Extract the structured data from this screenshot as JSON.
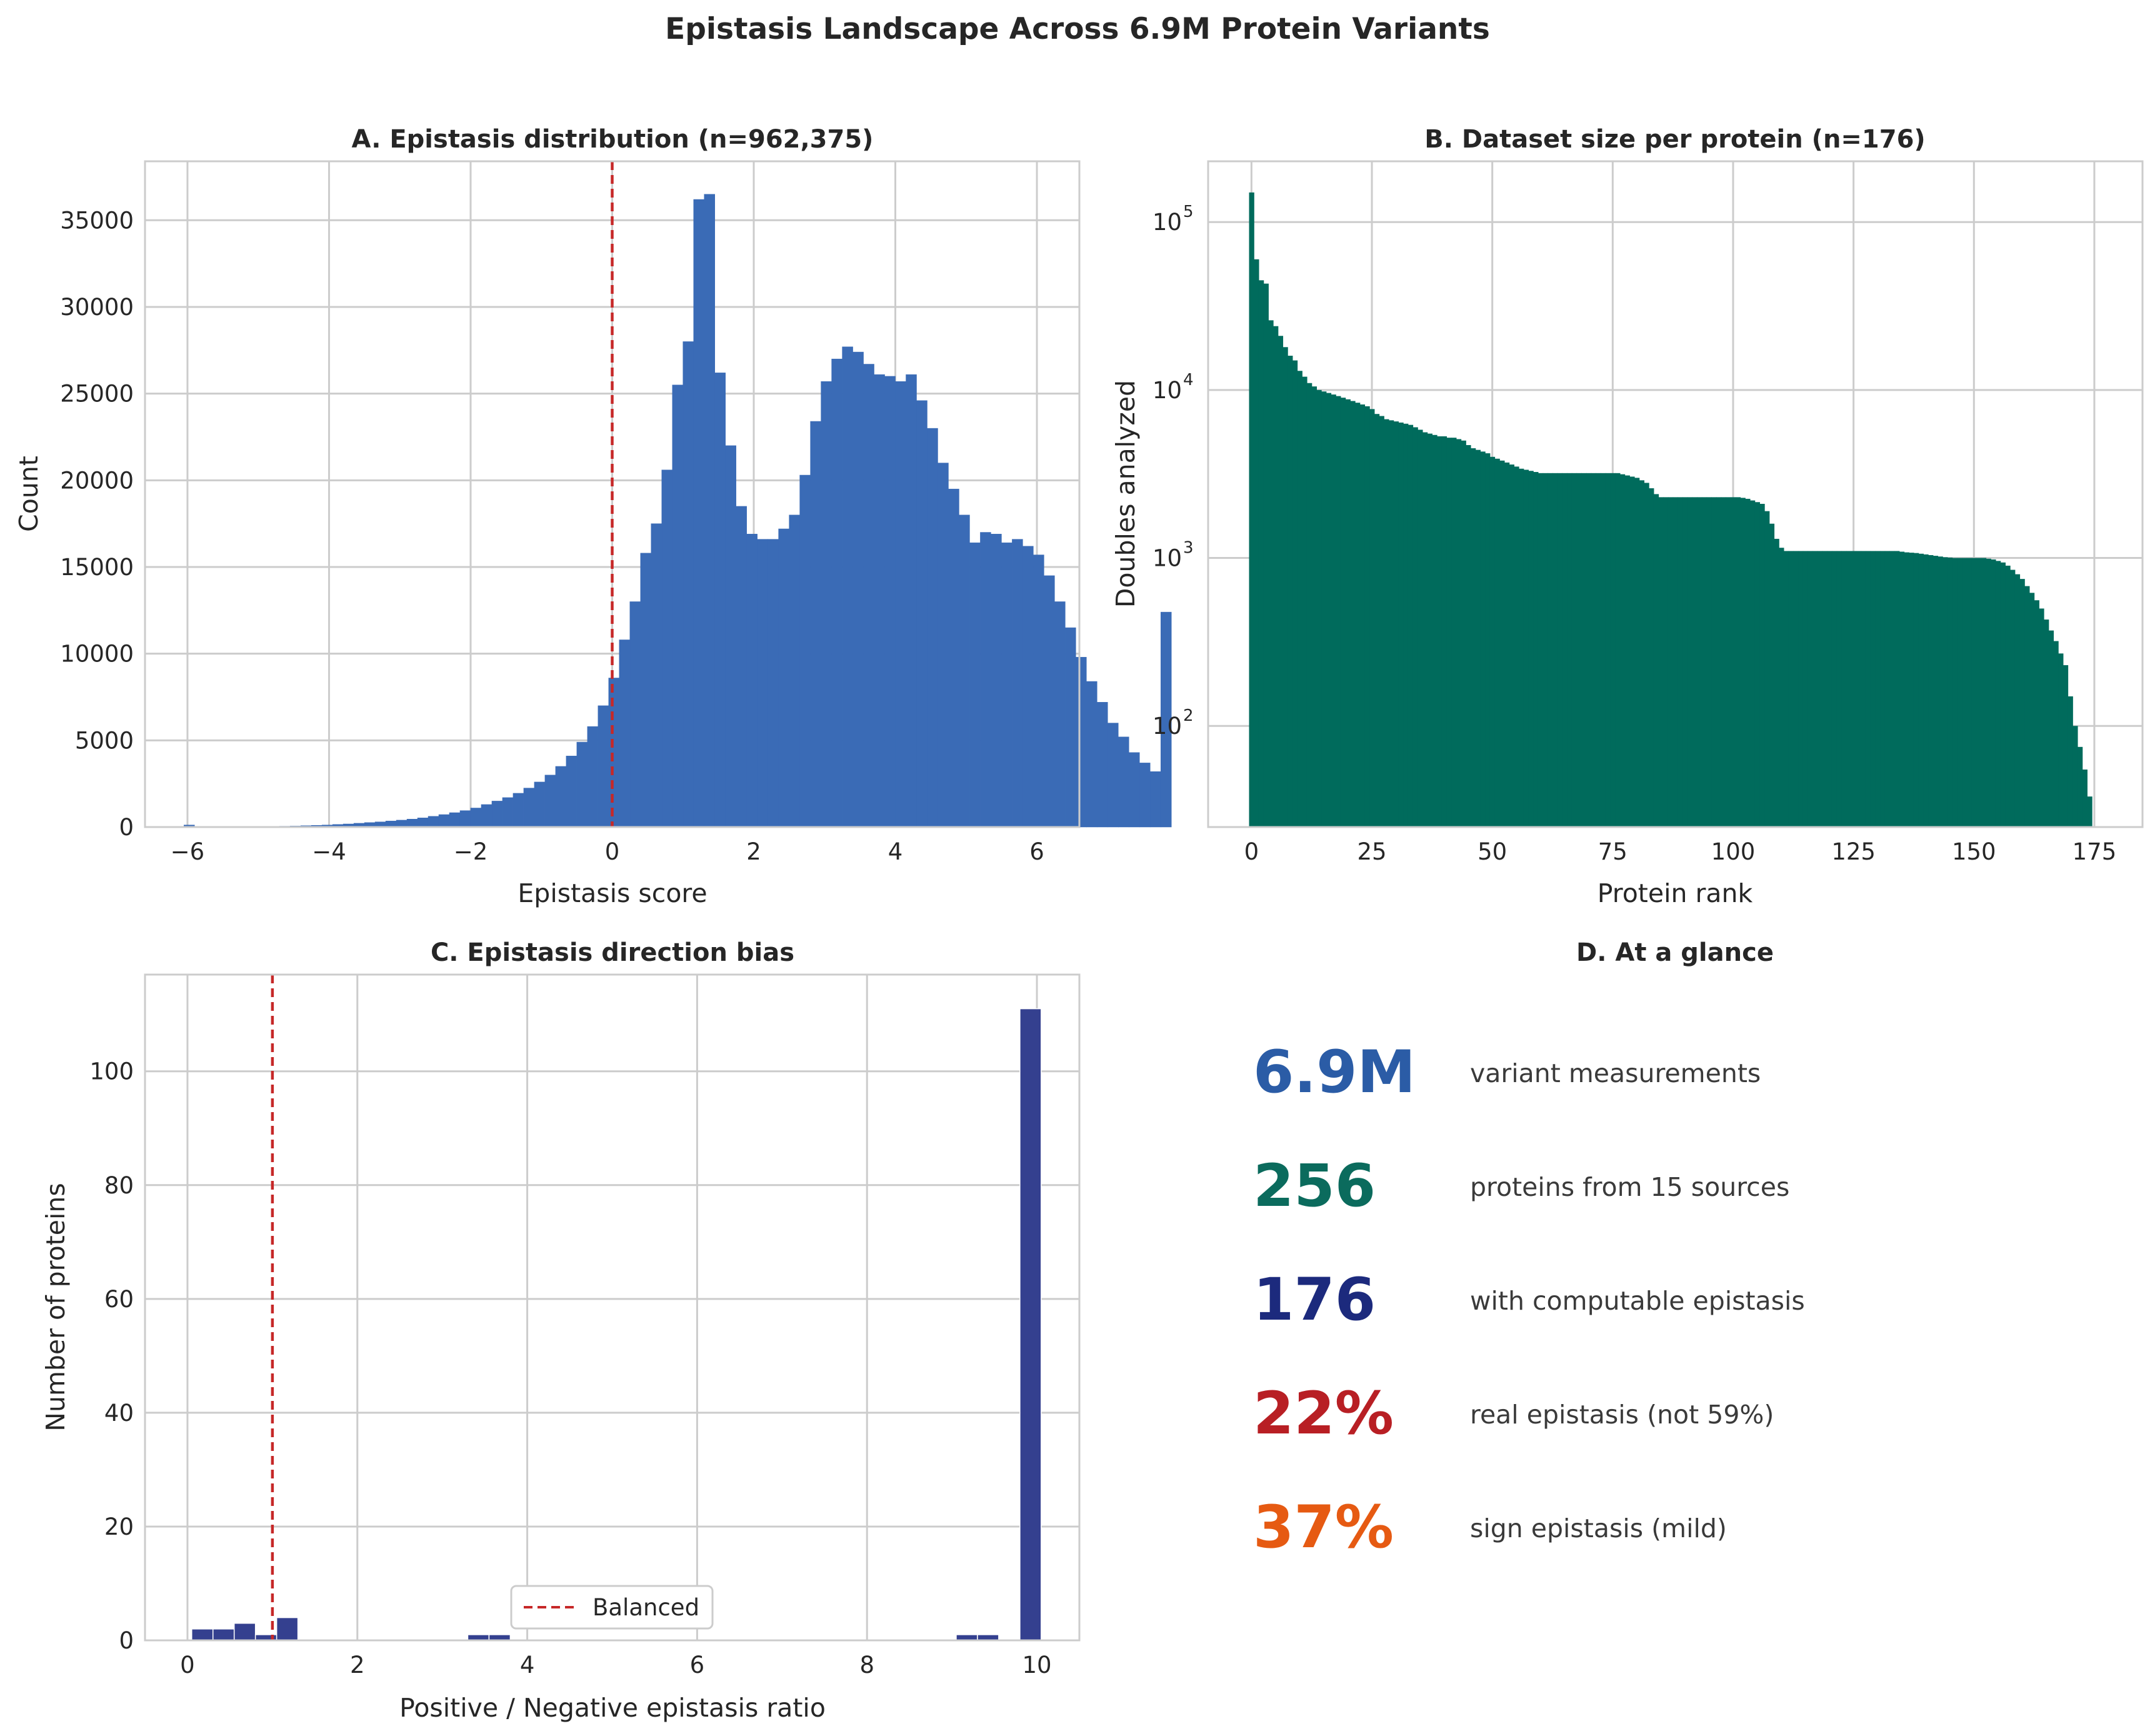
{
  "figure": {
    "title": "Epistasis Landscape Across 6.9M Protein Variants"
  },
  "chart_data": [
    {
      "panel": "A",
      "type": "bar",
      "title": "A. Epistasis distribution (n=962,375)",
      "xlabel": "Epistasis score",
      "ylabel": "Count",
      "xlim": [
        -6.6,
        6.6
      ],
      "ylim": [
        0,
        38400
      ],
      "xticks": [
        -6,
        -4,
        -2,
        0,
        2,
        4,
        6
      ],
      "xtick_labels": [
        "−6",
        "−4",
        "−2",
        "0",
        "2",
        "4",
        "6"
      ],
      "yticks": [
        0,
        5000,
        10000,
        15000,
        20000,
        25000,
        30000,
        35000
      ],
      "yticks_labels": [
        "0",
        "5000",
        "10000",
        "15000",
        "20000",
        "25000",
        "30000",
        "35000"
      ],
      "bin_width": 0.15,
      "bin_start": -6.05,
      "values": [
        120,
        40,
        20,
        10,
        10,
        20,
        20,
        30,
        40,
        50,
        60,
        80,
        100,
        120,
        150,
        180,
        220,
        260,
        300,
        350,
        400,
        460,
        530,
        620,
        720,
        830,
        950,
        1100,
        1300,
        1500,
        1700,
        1950,
        2250,
        2600,
        3000,
        3500,
        4100,
        4900,
        5800,
        7000,
        8600,
        10800,
        13000,
        15800,
        17500,
        20600,
        25500,
        28000,
        36200,
        36500,
        26200,
        22000,
        18500,
        16900,
        16600,
        16600,
        17200,
        18000,
        20300,
        23400,
        25700,
        27000,
        27700,
        27400,
        26700,
        26100,
        26000,
        25700,
        26100,
        24600,
        23000,
        21000,
        19500,
        18000,
        16400,
        17000,
        16900,
        16400,
        16600,
        16200,
        15700,
        14500,
        13000,
        11500,
        9800,
        8400,
        7200,
        6000,
        5200,
        4300,
        3700,
        3200,
        12400
      ],
      "color": "#3a6bb6",
      "reference_line": {
        "x": 0,
        "color": "#c62828",
        "style": "dashed"
      }
    },
    {
      "panel": "B",
      "type": "bar",
      "title": "B. Dataset size per protein (n=176)",
      "xlabel": "Protein rank",
      "ylabel": "Doubles analyzed",
      "scale_y": "log",
      "xlim": [
        -9,
        185
      ],
      "ylim": [
        25,
        230000
      ],
      "xticks": [
        0,
        25,
        50,
        75,
        100,
        125,
        150,
        175
      ],
      "xtick_labels": [
        "0",
        "25",
        "50",
        "75",
        "100",
        "125",
        "150",
        "175"
      ],
      "ytick_labels": [
        {
          "value": 100,
          "base": "10",
          "exp": "2"
        },
        {
          "value": 1000,
          "base": "10",
          "exp": "3"
        },
        {
          "value": 10000,
          "base": "10",
          "exp": "4"
        },
        {
          "value": 100000,
          "base": "10",
          "exp": "5"
        }
      ],
      "values": [
        150000,
        60000,
        45000,
        43000,
        26000,
        24000,
        21000,
        18000,
        16000,
        15000,
        13000,
        12000,
        11000,
        10500,
        10000,
        9800,
        9600,
        9400,
        9200,
        9000,
        8800,
        8600,
        8400,
        8200,
        8000,
        7700,
        7200,
        7000,
        6700,
        6600,
        6500,
        6400,
        6300,
        6200,
        6000,
        5800,
        5600,
        5500,
        5400,
        5300,
        5300,
        5200,
        5200,
        5100,
        5000,
        4700,
        4500,
        4400,
        4300,
        4200,
        4000,
        3900,
        3800,
        3700,
        3600,
        3500,
        3400,
        3350,
        3300,
        3250,
        3200,
        3200,
        3200,
        3200,
        3200,
        3200,
        3200,
        3200,
        3200,
        3200,
        3200,
        3200,
        3200,
        3200,
        3200,
        3200,
        3200,
        3150,
        3100,
        3050,
        3000,
        2900,
        2800,
        2600,
        2400,
        2300,
        2300,
        2300,
        2300,
        2300,
        2300,
        2300,
        2300,
        2300,
        2300,
        2300,
        2300,
        2300,
        2300,
        2300,
        2300,
        2300,
        2280,
        2250,
        2200,
        2150,
        2100,
        1900,
        1600,
        1300,
        1150,
        1100,
        1100,
        1100,
        1100,
        1100,
        1100,
        1100,
        1100,
        1100,
        1100,
        1100,
        1100,
        1100,
        1100,
        1100,
        1100,
        1100,
        1100,
        1100,
        1100,
        1100,
        1100,
        1100,
        1100,
        1090,
        1080,
        1075,
        1070,
        1060,
        1050,
        1040,
        1030,
        1020,
        1010,
        1005,
        1000,
        1000,
        1000,
        1000,
        1000,
        1000,
        1000,
        990,
        980,
        960,
        940,
        900,
        850,
        800,
        750,
        680,
        620,
        560,
        500,
        430,
        370,
        320,
        270,
        230,
        150,
        100,
        75,
        55,
        38
      ],
      "color": "#006b5c"
    },
    {
      "panel": "C",
      "type": "bar",
      "title": "C. Epistasis direction bias",
      "xlabel": "Positive / Negative epistasis ratio",
      "ylabel": "Number of proteins",
      "xlim": [
        -0.5,
        10.5
      ],
      "ylim": [
        0,
        117
      ],
      "xticks": [
        0,
        2,
        4,
        6,
        8,
        10
      ],
      "xtick_labels": [
        "0",
        "2",
        "4",
        "6",
        "8",
        "10"
      ],
      "yticks": [
        0,
        20,
        40,
        60,
        80,
        100
      ],
      "ytick_labels": [
        "0",
        "20",
        "40",
        "60",
        "80",
        "100"
      ],
      "bin_width": 0.25,
      "bin_start": 0.05,
      "values": [
        2,
        2,
        3,
        1,
        4,
        0,
        0,
        0,
        0,
        0,
        0,
        0,
        0,
        1,
        1,
        0,
        0,
        0,
        0,
        0,
        0,
        0,
        0,
        0,
        0,
        0,
        0,
        0,
        0,
        0,
        0,
        0,
        0,
        0,
        0,
        0,
        1,
        1,
        0,
        111
      ],
      "color": "#34408f",
      "reference_line": {
        "x": 1.0,
        "color": "#c62828",
        "style": "dashed"
      },
      "legend": {
        "label": "Balanced",
        "position": "lower center"
      }
    }
  ],
  "glance": {
    "title": "D. At a glance",
    "items": [
      {
        "value": "6.9M",
        "label": "variant measurements",
        "color": "#2b5ca6"
      },
      {
        "value": "256",
        "label": "proteins from 15 sources",
        "color": "#0b6b5d"
      },
      {
        "value": "176",
        "label": "with computable epistasis",
        "color": "#1c2a7d"
      },
      {
        "value": "22%",
        "label": "real epistasis (not 59%)",
        "color": "#b81f24"
      },
      {
        "value": "37%",
        "label": "sign epistasis (mild)",
        "color": "#e65a12"
      }
    ]
  }
}
